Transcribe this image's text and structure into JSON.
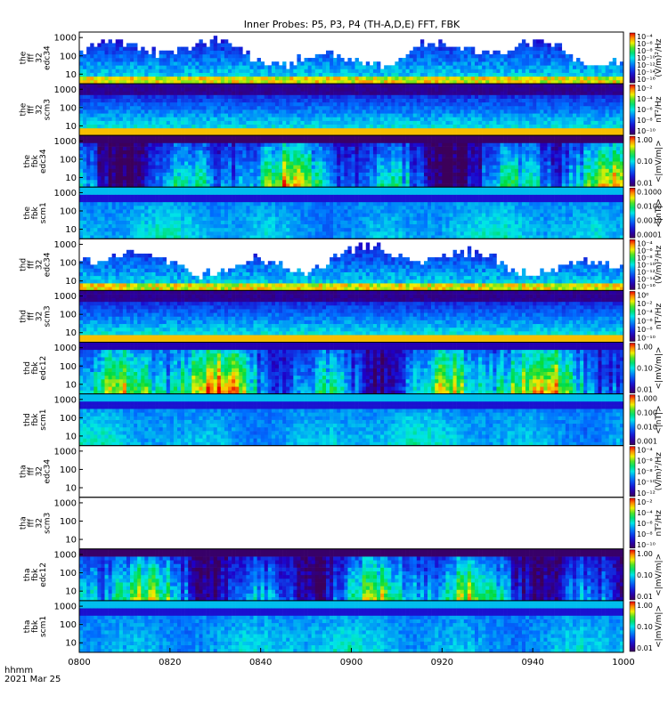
{
  "chart_data": {
    "type": "heatmap",
    "title": "Inner Probes: P5, P3, P4 (TH-A,D,E) FFT, FBK",
    "x_axis": {
      "ticks": [
        "0800",
        "0820",
        "0840",
        "0900",
        "0920",
        "0940",
        "1000"
      ],
      "footer_label": "hhmm",
      "footer_date": "2021 Mar 25"
    },
    "y_axis": {
      "scale": "log",
      "range": [
        3,
        2000
      ],
      "ticks": [
        "10",
        "100",
        "1000"
      ]
    },
    "panels": [
      {
        "label": [
          "the",
          "fff",
          "32",
          "edc34"
        ],
        "cb_ticks": [
          "10⁻⁴",
          "10⁻⁶",
          "10⁻⁸",
          "10⁻¹⁰",
          "10⁻¹²",
          "10⁻¹⁴",
          "10⁻¹⁶"
        ],
        "unit": "(V/m)²/Hz",
        "style": "wave_e"
      },
      {
        "label": [
          "the",
          "fff",
          "32",
          "scm3"
        ],
        "cb_ticks": [
          "10⁻²",
          "10⁻⁴",
          "10⁻⁶",
          "10⁻⁸",
          "10⁻¹⁰"
        ],
        "unit": "nT²/Hz",
        "style": "wave_b"
      },
      {
        "label": [
          "the",
          "fbk",
          "edc34"
        ],
        "cb_ticks": [
          "1.00",
          "0.10",
          "0.01"
        ],
        "unit": "<|mV/m|>",
        "style": "fbk_e"
      },
      {
        "label": [
          "the",
          "fbk",
          "scm1"
        ],
        "cb_ticks": [
          "0.1000",
          "0.0100",
          "0.0010",
          "0.0001"
        ],
        "unit": "<|nT|>",
        "style": "fbk_b"
      },
      {
        "label": [
          "thd",
          "fff",
          "32",
          "edc34"
        ],
        "cb_ticks": [
          "10⁻⁴",
          "10⁻⁶",
          "10⁻⁸",
          "10⁻¹⁰",
          "10⁻¹²",
          "10⁻¹⁴",
          "10⁻¹⁶"
        ],
        "unit": "(V/m)²/Hz",
        "style": "wave_e"
      },
      {
        "label": [
          "thd",
          "fff",
          "32",
          "scm3"
        ],
        "cb_ticks": [
          "10⁰",
          "10⁻²",
          "10⁻⁴",
          "10⁻⁶",
          "10⁻⁸",
          "10⁻¹⁰"
        ],
        "unit": "nT²/Hz",
        "style": "wave_b"
      },
      {
        "label": [
          "thd",
          "fbk",
          "edc12"
        ],
        "cb_ticks": [
          "1.00",
          "0.10",
          "0.01"
        ],
        "unit": "<|mV/m|>",
        "style": "fbk_e2"
      },
      {
        "label": [
          "thd",
          "fbk",
          "scm1"
        ],
        "cb_ticks": [
          "1.000",
          "0.100",
          "0.010",
          "0.001"
        ],
        "unit": "<|nT|>",
        "style": "fbk_b2"
      },
      {
        "label": [
          "tha",
          "fff",
          "32",
          "edc34"
        ],
        "cb_ticks": [
          "10⁻⁴",
          "10⁻⁶",
          "10⁻⁸",
          "10⁻¹⁰",
          "10⁻¹²"
        ],
        "unit": "(V/m)²/Hz",
        "style": "empty"
      },
      {
        "label": [
          "tha",
          "fff",
          "32",
          "scm3"
        ],
        "cb_ticks": [
          "10⁻²",
          "10⁻⁴",
          "10⁻⁶",
          "10⁻⁸",
          "10⁻¹⁰"
        ],
        "unit": "nT²/Hz",
        "style": "empty"
      },
      {
        "label": [
          "tha",
          "fbk",
          "edc12"
        ],
        "cb_ticks": [
          "1.00",
          "0.10",
          "0.01"
        ],
        "unit": "<|mV/m|>",
        "style": "fbk_e3"
      },
      {
        "label": [
          "tha",
          "fbk",
          "scm1"
        ],
        "cb_ticks": [
          "1.00",
          "0.10",
          "0.01"
        ],
        "unit": "<|mV/m|>",
        "style": "fbk_b3"
      }
    ]
  }
}
